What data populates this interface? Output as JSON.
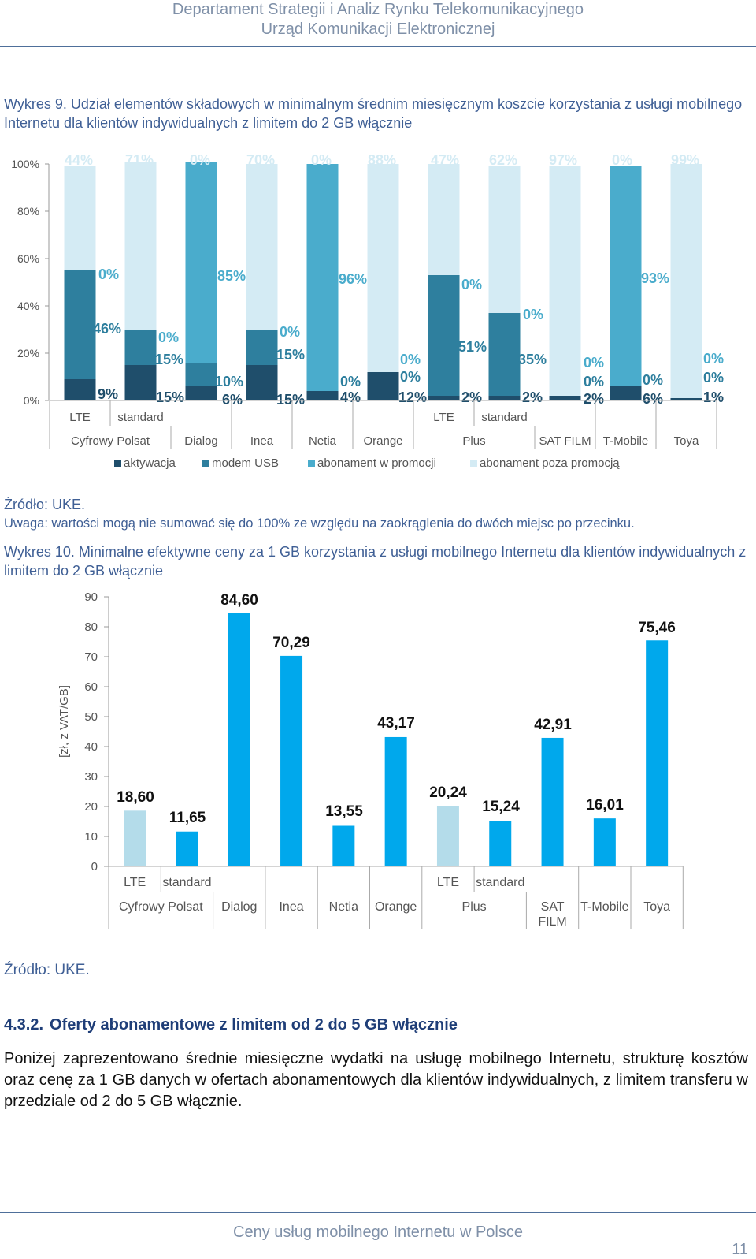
{
  "header": {
    "line1": "Departament Strategii i Analiz Rynku Telekomunikacyjnego",
    "line2": "Urząd Komunikacji Elektronicznej"
  },
  "fig9": {
    "title": "Wykres 9. Udział elementów składowych w minimalnym średnim miesięcznym koszcie korzystania z usługi mobilnego Internetu dla klientów indywidualnych z limitem do 2 GB włącznie",
    "source": "Źródło: UKE.",
    "note": "Uwaga: wartości mogą nie sumować się do 100% ze względu na zaokrąglenia do dwóch miejsc po przecinku."
  },
  "fig10": {
    "title": "Wykres 10. Minimalne efektywne ceny za 1 GB korzystania z usługi mobilnego Internetu dla klientów indywidualnych z limitem do 2 GB włącznie",
    "source": "Źródło: UKE."
  },
  "section": {
    "number": "4.3.2.",
    "title": "Oferty abonamentowe z limitem od 2 do 5 GB włącznie"
  },
  "paragraph": "Poniżej zaprezentowano średnie miesięczne wydatki na usługę mobilnego Internetu, strukturę kosztów oraz  cenę za 1 GB danych w ofertach abonamentowych dla klientów indywidualnych, z limitem transferu w przedziale od 2 do 5 GB włącznie.",
  "footer": {
    "text": "Ceny usług mobilnego Internetu w Polsce",
    "page": "11"
  },
  "chart_data": [
    {
      "type": "bar",
      "stacked": true,
      "yticks": [
        "0%",
        "20%",
        "40%",
        "60%",
        "80%",
        "100%"
      ],
      "ylim": [
        0,
        100
      ],
      "categories": [
        "LTE",
        "standard",
        "Dialog",
        "Inea",
        "Netia",
        "Orange",
        "LTE",
        "standard",
        "SAT FILM",
        "T-Mobile",
        "Toya"
      ],
      "groups": [
        {
          "label": "Cyfrowy Polsat",
          "count": 2
        },
        {
          "label": "Dialog",
          "count": 1
        },
        {
          "label": "Inea",
          "count": 1
        },
        {
          "label": "Netia",
          "count": 1
        },
        {
          "label": "Orange",
          "count": 1
        },
        {
          "label": "Plus",
          "count": 2
        },
        {
          "label": "SAT FILM",
          "count": 1
        },
        {
          "label": "T-Mobile",
          "count": 1
        },
        {
          "label": "Toya",
          "count": 1
        }
      ],
      "series": [
        {
          "name": "aktywacja",
          "color": "#1f4e6b",
          "values": [
            9,
            15,
            6,
            15,
            4,
            12,
            2,
            2,
            2,
            6,
            1
          ],
          "labels": [
            "9%",
            "15%",
            "6%",
            "15%",
            "4%",
            "12%",
            "2%",
            "2%",
            "2%",
            "6%",
            "1%"
          ]
        },
        {
          "name": "modem USB",
          "color": "#2e7f9e",
          "values": [
            46,
            15,
            10,
            15,
            0,
            0,
            51,
            35,
            0,
            0,
            0
          ],
          "labels": [
            "46%",
            "15%",
            "10%",
            "15%",
            "0%",
            "0%",
            "51%",
            "35%",
            "0%",
            "0%",
            "0%"
          ]
        },
        {
          "name": "abonament w promocji",
          "color": "#4aaccc",
          "values": [
            0,
            0,
            85,
            0,
            96,
            0,
            0,
            0,
            0,
            93,
            0
          ],
          "labels": [
            "0%",
            "0%",
            "85%",
            "0%",
            "96%",
            "0%",
            "0%",
            "0%",
            "0%",
            "93%",
            "0%"
          ]
        },
        {
          "name": "abonament poza promocją",
          "color": "#d4ebf4",
          "values": [
            44,
            71,
            0,
            70,
            0,
            88,
            47,
            62,
            97,
            0,
            99
          ],
          "labels": [
            "44%",
            "71%",
            "0%",
            "70%",
            "0%",
            "88%",
            "47%",
            "62%",
            "97%",
            "0%",
            "99%"
          ]
        }
      ]
    },
    {
      "type": "bar",
      "ylabel": "[zł, z VAT/GB]",
      "yticks": [
        "0",
        "10",
        "20",
        "30",
        "40",
        "50",
        "60",
        "70",
        "80",
        "90"
      ],
      "ylim": [
        0,
        90
      ],
      "categories": [
        "LTE",
        "standard",
        "Dialog",
        "Inea",
        "Netia",
        "Orange",
        "LTE",
        "standard",
        "SAT FILM",
        "T-Mobile",
        "Toya"
      ],
      "groups": [
        {
          "label": "Cyfrowy Polsat",
          "count": 2
        },
        {
          "label": "Dialog",
          "count": 1
        },
        {
          "label": "Inea",
          "count": 1
        },
        {
          "label": "Netia",
          "count": 1
        },
        {
          "label": "Orange",
          "count": 1
        },
        {
          "label": "Plus",
          "count": 2
        },
        {
          "label": "SAT FILM",
          "count": 1
        },
        {
          "label": "T-Mobile",
          "count": 1
        },
        {
          "label": "Toya",
          "count": 1
        }
      ],
      "values": [
        18.6,
        11.65,
        84.6,
        70.29,
        13.55,
        43.17,
        20.24,
        15.24,
        42.91,
        16.01,
        75.46
      ],
      "labels": [
        "18,60",
        "11,65",
        "84,60",
        "70,29",
        "13,55",
        "43,17",
        "20,24",
        "15,24",
        "42,91",
        "16,01",
        "75,46"
      ],
      "colors": [
        "#b4dcea",
        "#00a8ec",
        "#00a8ec",
        "#00a8ec",
        "#00a8ec",
        "#00a8ec",
        "#b4dcea",
        "#00a8ec",
        "#00a8ec",
        "#00a8ec",
        "#00a8ec"
      ]
    }
  ]
}
